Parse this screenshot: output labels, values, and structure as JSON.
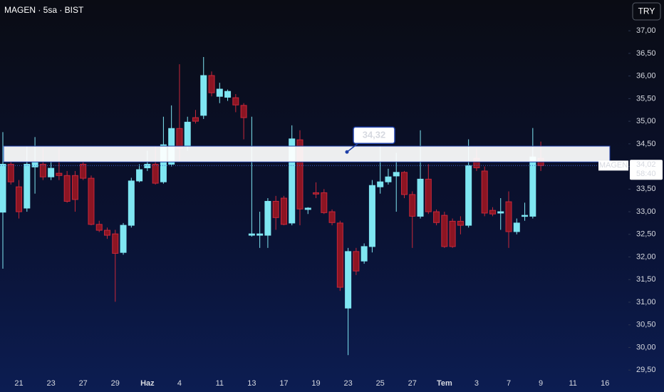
{
  "chart_data": {
    "type": "candlestick",
    "title": "MAGEN · 5sa · BIST",
    "currency": "TRY",
    "categories": [
      null,
      null,
      "21",
      null,
      null,
      null,
      "23",
      null,
      null,
      null,
      "27",
      null,
      null,
      null,
      "29",
      null,
      null,
      null,
      "Haz",
      null,
      null,
      null,
      "4",
      null,
      null,
      null,
      null,
      "11",
      null,
      null,
      null,
      "13",
      null,
      null,
      null,
      "17",
      null,
      null,
      null,
      "19",
      null,
      null,
      null,
      "23",
      null,
      null,
      null,
      "25",
      null,
      null,
      null,
      "27",
      null,
      null,
      null,
      "Tem",
      null,
      null,
      null,
      "3",
      null,
      null,
      null,
      "7",
      null,
      null,
      null,
      "9",
      null,
      null,
      null,
      "11",
      null,
      null,
      null,
      "16"
    ],
    "series": [
      {
        "name": "MAGEN",
        "open": [
          32.99,
          34.05,
          33.55,
          33.08,
          33.99,
          34.05,
          33.77,
          33.85,
          33.8,
          33.8,
          34.05,
          33.74,
          32.72,
          32.59,
          32.51,
          32.1,
          32.7,
          33.68,
          33.97,
          34.05,
          33.66,
          34.05,
          34.84,
          34.45,
          35.08,
          35.13,
          36.01,
          35.55,
          35.53,
          35.52,
          35.35,
          32.48,
          32.48,
          32.48,
          33.23,
          33.3,
          32.75,
          34.59,
          33.05,
          33.42,
          33.42,
          33.0,
          32.75,
          30.87,
          32.12,
          31.91,
          32.23,
          33.55,
          33.66,
          33.79,
          33.87,
          33.38,
          32.9,
          33.72,
          33.0,
          32.92,
          32.79,
          32.79,
          32.7,
          34.18,
          33.9,
          33.03,
          32.97,
          33.22,
          32.56,
          32.9,
          32.9,
          34.18,
          null,
          null,
          null,
          null,
          null,
          null,
          null,
          null
        ],
        "high": [
          34.76,
          34.1,
          33.7,
          34.45,
          34.65,
          34.4,
          34.1,
          34.4,
          33.9,
          33.9,
          34.1,
          33.8,
          32.8,
          32.65,
          32.6,
          32.75,
          33.75,
          34.05,
          34.35,
          34.45,
          35.1,
          35.35,
          36.26,
          35.1,
          35.25,
          36.42,
          36.1,
          35.85,
          35.7,
          35.6,
          35.4,
          35.1,
          33.0,
          33.3,
          33.35,
          33.35,
          34.91,
          34.8,
          33.1,
          33.65,
          33.5,
          33.05,
          32.8,
          32.2,
          32.2,
          32.3,
          33.7,
          34.45,
          33.95,
          34.3,
          33.9,
          33.45,
          34.8,
          34.05,
          33.05,
          33.0,
          32.85,
          32.9,
          34.6,
          34.4,
          34.0,
          33.1,
          33.3,
          33.45,
          32.85,
          33.2,
          34.85,
          34.55,
          null,
          null,
          null,
          null,
          null,
          null,
          null,
          null
        ],
        "low": [
          31.74,
          33.6,
          32.85,
          33.0,
          33.4,
          33.7,
          33.7,
          33.7,
          33.2,
          33.0,
          33.7,
          32.7,
          32.55,
          32.4,
          31.01,
          32.05,
          32.65,
          33.65,
          33.9,
          33.6,
          33.62,
          34.0,
          34.1,
          34.35,
          34.95,
          35.05,
          35.55,
          35.4,
          35.45,
          35.2,
          34.6,
          32.45,
          32.2,
          32.2,
          32.6,
          32.7,
          32.7,
          32.7,
          32.95,
          33.3,
          32.95,
          32.7,
          31.25,
          29.83,
          31.6,
          31.85,
          32.1,
          33.4,
          33.6,
          33.0,
          33.3,
          32.2,
          32.85,
          32.95,
          32.7,
          32.2,
          32.2,
          32.5,
          32.65,
          33.9,
          32.9,
          32.9,
          32.6,
          32.2,
          32.5,
          32.8,
          32.85,
          33.9,
          null,
          null,
          null,
          null,
          null,
          null,
          null,
          null
        ],
        "close": [
          34.05,
          33.66,
          33.0,
          34.05,
          34.1,
          33.77,
          33.96,
          33.8,
          33.23,
          33.27,
          33.74,
          32.72,
          32.59,
          32.48,
          32.08,
          32.7,
          33.68,
          33.93,
          34.05,
          33.63,
          34.48,
          34.84,
          34.4,
          34.98,
          35.0,
          36.01,
          35.63,
          35.71,
          35.66,
          35.36,
          35.08,
          32.51,
          32.51,
          33.23,
          32.87,
          32.72,
          34.61,
          33.06,
          33.08,
          33.39,
          32.98,
          32.76,
          31.33,
          32.12,
          31.69,
          32.23,
          33.58,
          33.66,
          33.77,
          33.87,
          33.38,
          32.9,
          33.72,
          33.0,
          32.76,
          32.23,
          32.23,
          32.7,
          34.02,
          33.97,
          32.97,
          32.95,
          33.0,
          32.56,
          32.75,
          32.92,
          34.21,
          34.02,
          null,
          null,
          null,
          null,
          null,
          null,
          null,
          null
        ]
      }
    ],
    "up_color": "#7fe6f2",
    "down_color": "#8c1523",
    "ylim": [
      29.33,
      37.68
    ],
    "yticks": [
      {
        "value": 29.5,
        "label": "29,50"
      },
      {
        "value": 30,
        "label": "30,00"
      },
      {
        "value": 30.5,
        "label": "30,50"
      },
      {
        "value": 31,
        "label": "31,00"
      },
      {
        "value": 31.5,
        "label": "31,50"
      },
      {
        "value": 32,
        "label": "32,00"
      },
      {
        "value": 32.5,
        "label": "32,50"
      },
      {
        "value": 33,
        "label": "33,00"
      },
      {
        "value": 33.5,
        "label": "33,50"
      },
      {
        "value": 34,
        "label": "34,00"
      },
      {
        "value": 34.5,
        "label": "34,50"
      },
      {
        "value": 35,
        "label": "35,00"
      },
      {
        "value": 35.5,
        "label": "35,50"
      },
      {
        "value": 36,
        "label": "36,00"
      },
      {
        "value": 36.5,
        "label": "36,50"
      },
      {
        "value": 37,
        "label": "37,00"
      }
    ],
    "grid": false,
    "zone": {
      "from": 34.1,
      "to": 34.45
    },
    "annotation": {
      "value": 34.32,
      "label": "34,32"
    },
    "last_price": {
      "value": 34.02,
      "label": "34,02"
    },
    "countdown": "58:40"
  }
}
